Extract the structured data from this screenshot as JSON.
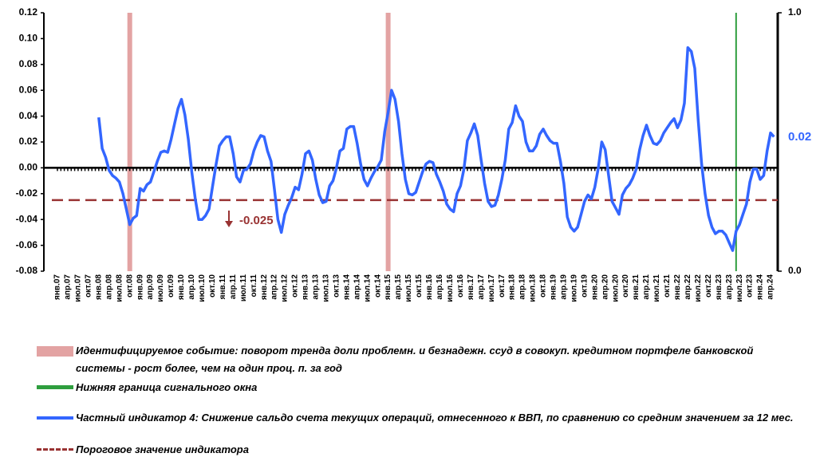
{
  "chart_data": {
    "type": "line",
    "categories": [
      "янв.07",
      null,
      null,
      "апр.07",
      null,
      null,
      "июл.07",
      null,
      null,
      "окт.07",
      null,
      null,
      "янв.08",
      null,
      null,
      "апр.08",
      null,
      null,
      "июл.08",
      null,
      null,
      "окт.08",
      null,
      null,
      "янв.09",
      null,
      null,
      "апр.09",
      null,
      null,
      "июл.09",
      null,
      null,
      "окт.09",
      null,
      null,
      "янв.10",
      null,
      null,
      "апр.10",
      null,
      null,
      "июл.10",
      null,
      null,
      "окт.10",
      null,
      null,
      "янв.11",
      null,
      null,
      "апр.11",
      null,
      null,
      "июл.11",
      null,
      null,
      "окт.11",
      null,
      null,
      "янв.12",
      null,
      null,
      "апр.12",
      null,
      null,
      "июл.12",
      null,
      null,
      "окт.12",
      null,
      null,
      "янв.13",
      null,
      null,
      "апр.13",
      null,
      null,
      "июл.13",
      null,
      null,
      "окт.13",
      null,
      null,
      "янв.14",
      null,
      null,
      "апр.14",
      null,
      null,
      "июл.14",
      null,
      null,
      "окт.14",
      null,
      null,
      "янв.15",
      null,
      null,
      "апр.15",
      null,
      null,
      "июл.15",
      null,
      null,
      "окт.15",
      null,
      null,
      "янв.16",
      null,
      null,
      "апр.16",
      null,
      null,
      "июл.16",
      null,
      null,
      "окт.16",
      null,
      null,
      "янв.17",
      null,
      null,
      "апр.17",
      null,
      null,
      "июл.17",
      null,
      null,
      "окт.17",
      null,
      null,
      "янв.18",
      null,
      null,
      "апр.18",
      null,
      null,
      "июл.18",
      null,
      null,
      "окт.18",
      null,
      null,
      "янв.19",
      null,
      null,
      "апр.19",
      null,
      null,
      "июл.19",
      null,
      null,
      "окт.19",
      null,
      null,
      "янв.20",
      null,
      null,
      "апр.20",
      null,
      null,
      "июл.20",
      null,
      null,
      "окт.20",
      null,
      null,
      "янв.21",
      null,
      null,
      "апр.21",
      null,
      null,
      "июл.21",
      null,
      null,
      "окт.21",
      null,
      null,
      "янв.22",
      null,
      null,
      "апр.22",
      null,
      null,
      "июл.22",
      null,
      null,
      "окт.22",
      null,
      null,
      "янв.23",
      null,
      null,
      "апр.23",
      null,
      null,
      "июл.23",
      null,
      null,
      "окт.23",
      null,
      null,
      "янв.24",
      null,
      null,
      "апр.24",
      null
    ],
    "series": [
      {
        "name": "Частный индикатор 4: Снижение сальдо счета текущих операций, отнесенного к ВВП, по сравнению со средним значением за 12 мес.",
        "color": "#3366ff",
        "values": [
          null,
          null,
          null,
          null,
          null,
          null,
          null,
          null,
          null,
          null,
          null,
          null,
          0.039,
          0.015,
          0.008,
          -0.002,
          -0.006,
          -0.008,
          -0.011,
          -0.02,
          -0.032,
          -0.044,
          -0.039,
          -0.037,
          -0.016,
          -0.018,
          -0.013,
          -0.011,
          -0.003,
          0.005,
          0.012,
          0.013,
          0.012,
          0.022,
          0.034,
          0.046,
          0.053,
          0.041,
          0.022,
          -0.003,
          -0.024,
          -0.04,
          -0.04,
          -0.037,
          -0.032,
          -0.015,
          0.002,
          0.017,
          0.021,
          0.024,
          0.024,
          0.011,
          -0.007,
          -0.011,
          -0.002,
          -0.001,
          0.003,
          0.013,
          0.02,
          0.025,
          0.024,
          0.013,
          0.005,
          -0.017,
          -0.04,
          -0.05,
          -0.036,
          -0.029,
          -0.023,
          -0.015,
          -0.017,
          -0.005,
          0.011,
          0.013,
          0.006,
          -0.009,
          -0.021,
          -0.027,
          -0.026,
          -0.014,
          -0.01,
          0,
          0.013,
          0.015,
          0.03,
          0.032,
          0.032,
          0.019,
          0.003,
          -0.009,
          -0.014,
          -0.008,
          -0.003,
          0.001,
          0.006,
          0.028,
          0.043,
          0.06,
          0.053,
          0.036,
          0.011,
          -0.009,
          -0.02,
          -0.021,
          -0.019,
          -0.011,
          -0.003,
          0.003,
          0.005,
          0.004,
          -0.005,
          -0.011,
          -0.018,
          -0.028,
          -0.032,
          -0.034,
          -0.02,
          -0.014,
          -0.001,
          0.021,
          0.027,
          0.034,
          0.025,
          0.006,
          -0.012,
          -0.026,
          -0.03,
          -0.029,
          -0.021,
          -0.009,
          0.006,
          0.03,
          0.035,
          0.048,
          0.04,
          0.036,
          0.02,
          0.013,
          0.013,
          0.017,
          0.026,
          0.03,
          0.025,
          0.021,
          0.019,
          0.019,
          0.005,
          -0.012,
          -0.038,
          -0.046,
          -0.049,
          -0.046,
          -0.036,
          -0.026,
          -0.021,
          -0.024,
          -0.015,
          0,
          0.02,
          0.014,
          -0.006,
          -0.026,
          -0.031,
          -0.036,
          -0.021,
          -0.016,
          -0.013,
          -0.008,
          -0.001,
          0.014,
          0.025,
          0.033,
          0.025,
          0.019,
          0.018,
          0.021,
          0.027,
          0.031,
          0.035,
          0.038,
          0.031,
          0.037,
          0.05,
          0.093,
          0.09,
          0.077,
          0.037,
          0.003,
          -0.02,
          -0.037,
          -0.046,
          -0.051,
          -0.049,
          -0.049,
          -0.052,
          -0.058,
          -0.064,
          -0.049,
          -0.044,
          -0.036,
          -0.028,
          -0.011,
          -0.001,
          -0.001,
          -0.009,
          -0.006,
          0.013,
          0.027,
          0.024
        ],
        "last_value_label": "0.02"
      }
    ],
    "threshold": {
      "name": "Пороговое значение индикатора",
      "value": -0.025,
      "label": "-0.025",
      "color": "#993333"
    },
    "events": {
      "name": "Идентифицируемое событие: поворот тренда доли проблемн. и безнадежн. ссуд в совокуп. кредитном портфеле банковской системы - рост более, чем на один проц. п. за год",
      "color": "#e3a3a3",
      "periods": [
        21,
        96
      ]
    },
    "signal_window": {
      "name": "Нижняя граница сигнального окна",
      "color": "#2e9e3e",
      "periods": [
        197
      ]
    },
    "ylim": [
      -0.08,
      0.12
    ],
    "yticks": [
      0.12,
      {
        "value": 0.1,
        "label": "0.10"
      },
      0.08,
      0.06,
      0.04,
      0.02,
      {
        "value": 0,
        "label": "0.00"
      },
      -0.02,
      -0.04,
      -0.06,
      -0.08
    ],
    "y2lim": [
      0,
      1
    ],
    "y2ticks": [
      {
        "value": 0,
        "label": "0.0"
      },
      {
        "value": 1,
        "label": "1.0"
      }
    ]
  }
}
